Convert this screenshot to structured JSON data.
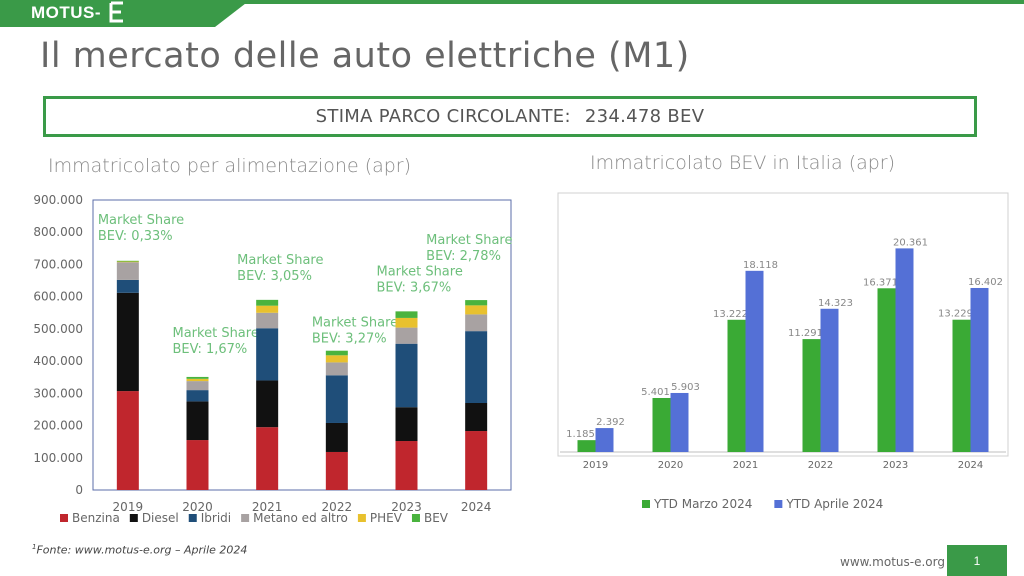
{
  "brand": {
    "logo_text": "MOTUS-",
    "color": "#3a9a48"
  },
  "title": "Il mercato delle auto elettriche (M1)",
  "stima": {
    "label": "STIMA PARCO CIRCOLANTE:",
    "value": "234.478 BEV"
  },
  "footer": {
    "source_sup": "1",
    "source": "Fonte: www.motus-e.org – Aprile 2024",
    "website": "www.motus-e.org",
    "page": "1"
  },
  "chart_data": [
    {
      "type": "bar",
      "stacked": true,
      "title": "Immatricolato per alimentazione (apr)",
      "categories": [
        "2019",
        "2020",
        "2021",
        "2022",
        "2023",
        "2024"
      ],
      "ylim": [
        0,
        900000
      ],
      "yticks": [
        "0",
        "100.000",
        "200.000",
        "300.000",
        "400.000",
        "500.000",
        "600.000",
        "700.000",
        "800.000",
        "900.000"
      ],
      "legend_position": "bottom",
      "series": [
        {
          "name": "Benzina",
          "color": "#c0262d",
          "values": [
            307000,
            155000,
            195000,
            118000,
            152000,
            183000
          ]
        },
        {
          "name": "Diesel",
          "color": "#111111",
          "values": [
            305000,
            120000,
            145000,
            90000,
            105000,
            87000
          ]
        },
        {
          "name": "Ibridi",
          "color": "#1f4e79",
          "values": [
            40000,
            35000,
            162000,
            148000,
            197000,
            223000
          ]
        },
        {
          "name": "Metano ed altro",
          "color": "#a8a2a2",
          "values": [
            55000,
            28000,
            48000,
            40000,
            50000,
            52000
          ]
        },
        {
          "name": "PHEV",
          "color": "#e8c12e",
          "values": [
            2000,
            7000,
            22000,
            22000,
            30000,
            28000
          ]
        },
        {
          "name": "BEV",
          "color": "#4ab33e",
          "values": [
            2300,
            5900,
            18100,
            14300,
            20400,
            16400
          ]
        }
      ],
      "annotations": [
        {
          "category": "2019",
          "line1": "Market Share",
          "line2": "BEV: 0,33%"
        },
        {
          "category": "2020",
          "line1": "Market Share",
          "line2": "BEV: 1,67%"
        },
        {
          "category": "2021",
          "line1": "Market Share",
          "line2": "BEV: 3,05%"
        },
        {
          "category": "2022",
          "line1": "Market Share",
          "line2": "BEV: 3,27%"
        },
        {
          "category": "2023",
          "line1": "Market Share",
          "line2": "BEV: 3,67%"
        },
        {
          "category": "2024",
          "line1": "Market Share",
          "line2": "BEV: 2,78%"
        }
      ],
      "annotation_color": "#6dbf7b"
    },
    {
      "type": "bar",
      "title": "Immatricolato BEV in Italia (apr)",
      "categories": [
        "2019",
        "2020",
        "2021",
        "2022",
        "2023",
        "2024"
      ],
      "ylim": [
        0,
        24000
      ],
      "legend_position": "bottom",
      "series": [
        {
          "name": "YTD Marzo 2024",
          "color": "#3aaa35",
          "values": [
            1185,
            5401,
            13222,
            11291,
            16371,
            13229
          ],
          "labels": [
            "1.185",
            "5.401",
            "13.222",
            "11.291",
            "16.371",
            "13.229"
          ]
        },
        {
          "name": "YTD Aprile 2024",
          "color": "#5470d6",
          "values": [
            2392,
            5903,
            18118,
            14323,
            20361,
            16402
          ],
          "labels": [
            "2.392",
            "5.903",
            "18.118",
            "14.323",
            "20.361",
            "16.402"
          ]
        }
      ]
    }
  ]
}
